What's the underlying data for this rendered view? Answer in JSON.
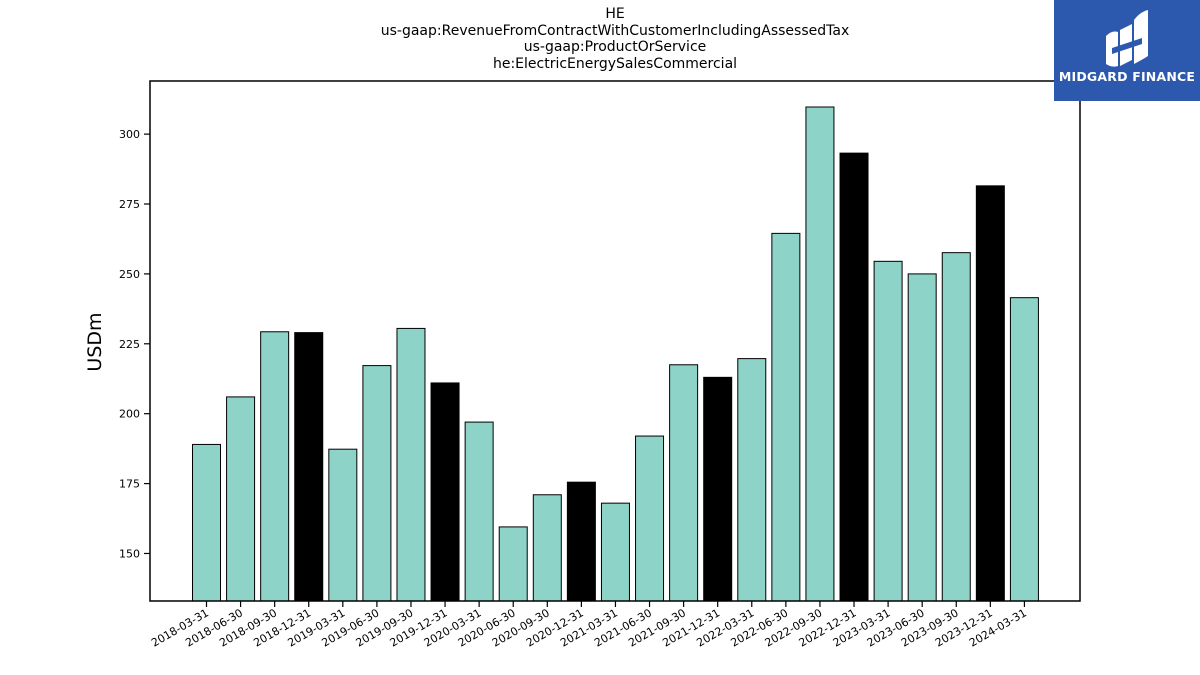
{
  "title_lines": [
    "HE",
    "us-gaap:RevenueFromContractWithCustomerIncludingAssessedTax",
    "us-gaap:ProductOrService",
    "he:ElectricEnergySalesCommercial"
  ],
  "logo": {
    "text": "MIDGARD FINANCE",
    "bg_color": "#2c59ad"
  },
  "chart_data": {
    "type": "bar",
    "title": "HE\nus-gaap:RevenueFromContractWithCustomerIncludingAssessedTax\nus-gaap:ProductOrService\nhe:ElectricEnergySalesCommercial",
    "xlabel": "",
    "ylabel": "USDm",
    "ylim": [
      133,
      319
    ],
    "yticks": [
      150,
      175,
      200,
      225,
      250,
      275,
      300
    ],
    "grid": false,
    "categories": [
      "2018-03-31",
      "2018-06-30",
      "2018-09-30",
      "2018-12-31",
      "2019-03-31",
      "2019-06-30",
      "2019-09-30",
      "2019-12-31",
      "2020-03-31",
      "2020-06-30",
      "2020-09-30",
      "2020-12-31",
      "2021-03-31",
      "2021-06-30",
      "2021-09-30",
      "2021-12-31",
      "2022-03-31",
      "2022-06-30",
      "2022-09-30",
      "2022-12-31",
      "2023-03-31",
      "2023-06-30",
      "2023-09-30",
      "2023-12-31",
      "2024-03-31"
    ],
    "values": [
      189,
      206,
      229.3,
      229,
      187.3,
      217.2,
      230.5,
      211,
      197,
      159.5,
      171,
      175.5,
      168,
      192,
      217.5,
      213,
      219.7,
      264.5,
      309.7,
      293.2,
      254.5,
      250,
      257.6,
      281.5,
      241.5
    ],
    "colors": {
      "quarter": "#8dd3c7",
      "year_end": "#000000",
      "edge": "#000000"
    },
    "highlighted_categories": [
      "2018-12-31",
      "2019-12-31",
      "2020-12-31",
      "2021-12-31",
      "2022-12-31",
      "2023-12-31"
    ]
  }
}
